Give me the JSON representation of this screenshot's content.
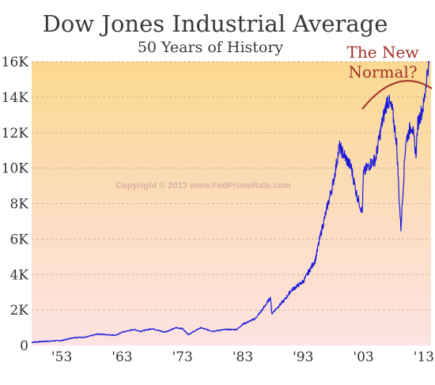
{
  "chart_data": {
    "type": "line",
    "title": "Dow Jones Industrial Average",
    "subtitle": "50 Years of History",
    "xlabel": "",
    "ylabel": "",
    "xlim": [
      1948,
      2014.2
    ],
    "ylim": [
      0,
      16000
    ],
    "grid": "horizontal dashed",
    "y_ticks": [
      "0",
      "2K",
      "4K",
      "6K",
      "8K",
      "10K",
      "12K",
      "14K",
      "16K"
    ],
    "x_ticks": [
      "'53",
      "'63",
      "'73",
      "'83",
      "'93",
      "'03",
      "'13"
    ],
    "annotation": "The New Normal?",
    "watermark": "Copyright © 2013 www.FedPrimeRate.com",
    "series": [
      {
        "color": "#1a1adc",
        "x": [
          1948,
          1950,
          1953,
          1955,
          1957,
          1959,
          1960,
          1962,
          1963,
          1965,
          1966,
          1968,
          1970,
          1972,
          1973,
          1974,
          1976,
          1978,
          1980,
          1982,
          1983,
          1985,
          1986,
          1987.6,
          1987.8,
          1990,
          1991,
          1993,
          1995,
          1996,
          1997,
          1998,
          1999,
          2000,
          2001,
          2001.8,
          2002.8,
          2003,
          2004,
          2005,
          2006,
          2007,
          2007.8,
          2008.5,
          2008.9,
          2009.2,
          2010,
          2011,
          2011.7,
          2012,
          2013,
          2013.5,
          2014
        ],
        "y": [
          180,
          230,
          280,
          450,
          470,
          650,
          620,
          580,
          750,
          900,
          800,
          950,
          750,
          1000,
          950,
          620,
          1000,
          800,
          900,
          900,
          1200,
          1500,
          1900,
          2700,
          1800,
          2600,
          3100,
          3600,
          4800,
          6400,
          7800,
          9200,
          11200,
          10600,
          10000,
          8600,
          7500,
          9700,
          10200,
          10500,
          12400,
          13900,
          13200,
          11400,
          8400,
          6600,
          11500,
          12500,
          10800,
          12500,
          13600,
          15200,
          16400
        ]
      }
    ]
  }
}
